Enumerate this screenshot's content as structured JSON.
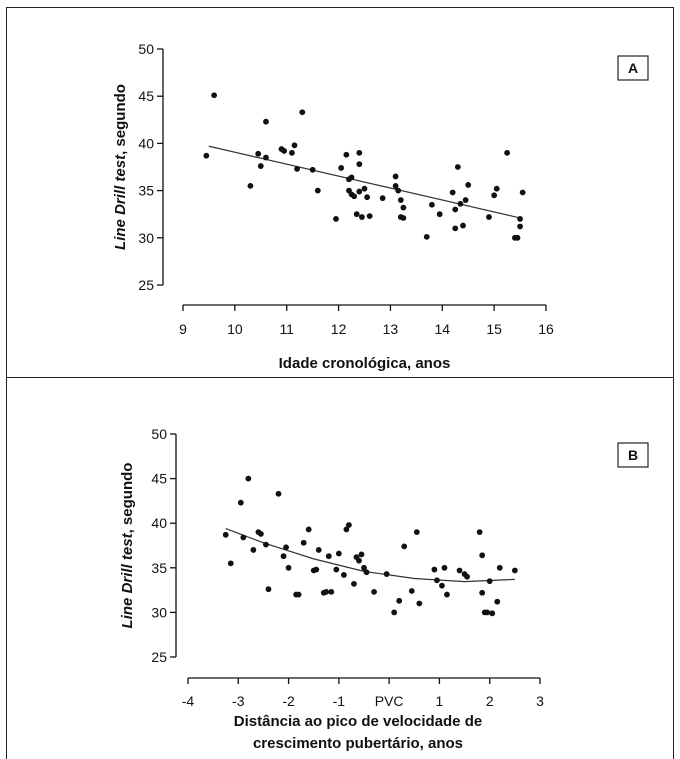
{
  "chart_data": [
    {
      "type": "scatter",
      "panel_label": "A",
      "ylabel_italic": "Line Drill test",
      "ylabel_rest": ", segundo",
      "xlabel_lines": [
        "Idade cronológica, anos"
      ],
      "xlim": [
        9,
        16
      ],
      "ylim": [
        25,
        50
      ],
      "x_ticks": [
        "9",
        "10",
        "11",
        "12",
        "13",
        "14",
        "15",
        "16"
      ],
      "y_ticks": [
        "25",
        "30",
        "35",
        "40",
        "45",
        "50"
      ],
      "fit": {
        "type": "linear",
        "points": [
          [
            9.5,
            39.7
          ],
          [
            15.5,
            32.1
          ]
        ]
      },
      "points": [
        [
          9.45,
          38.7
        ],
        [
          9.6,
          45.1
        ],
        [
          10.3,
          35.5
        ],
        [
          10.45,
          38.9
        ],
        [
          10.5,
          37.6
        ],
        [
          10.6,
          42.3
        ],
        [
          10.6,
          38.5
        ],
        [
          10.9,
          39.4
        ],
        [
          10.95,
          39.2
        ],
        [
          11.1,
          39.0
        ],
        [
          11.15,
          39.8
        ],
        [
          11.2,
          37.3
        ],
        [
          11.3,
          43.3
        ],
        [
          11.5,
          37.2
        ],
        [
          11.6,
          35.0
        ],
        [
          11.95,
          32.0
        ],
        [
          12.05,
          37.4
        ],
        [
          12.15,
          38.8
        ],
        [
          12.2,
          36.2
        ],
        [
          12.2,
          35.0
        ],
        [
          12.25,
          34.6
        ],
        [
          12.25,
          36.4
        ],
        [
          12.3,
          34.4
        ],
        [
          12.35,
          32.5
        ],
        [
          12.4,
          39.0
        ],
        [
          12.4,
          37.8
        ],
        [
          12.4,
          34.9
        ],
        [
          12.45,
          32.2
        ],
        [
          12.5,
          35.2
        ],
        [
          12.55,
          34.3
        ],
        [
          12.6,
          32.3
        ],
        [
          12.85,
          34.2
        ],
        [
          13.1,
          36.5
        ],
        [
          13.1,
          35.5
        ],
        [
          13.15,
          35.0
        ],
        [
          13.2,
          34.0
        ],
        [
          13.2,
          32.2
        ],
        [
          13.25,
          33.2
        ],
        [
          13.25,
          32.1
        ],
        [
          13.7,
          30.1
        ],
        [
          13.8,
          33.5
        ],
        [
          13.95,
          32.5
        ],
        [
          14.2,
          34.8
        ],
        [
          14.25,
          33.0
        ],
        [
          14.25,
          31.0
        ],
        [
          14.3,
          37.5
        ],
        [
          14.35,
          33.6
        ],
        [
          14.4,
          31.3
        ],
        [
          14.45,
          34.0
        ],
        [
          14.5,
          35.6
        ],
        [
          14.9,
          32.2
        ],
        [
          15.0,
          34.5
        ],
        [
          15.05,
          35.2
        ],
        [
          15.25,
          39.0
        ],
        [
          15.4,
          30.0
        ],
        [
          15.45,
          30.0
        ],
        [
          15.5,
          32.0
        ],
        [
          15.5,
          31.2
        ],
        [
          15.55,
          34.8
        ]
      ]
    },
    {
      "type": "scatter",
      "panel_label": "B",
      "ylabel_italic": "Line Drill test",
      "ylabel_rest": ", segundo",
      "xlabel_lines": [
        "Distância ao pico de velocidade de",
        "crescimento pubertário, anos"
      ],
      "xlim": [
        -4,
        3
      ],
      "ylim": [
        25,
        50
      ],
      "x_ticks": [
        "-4",
        "-3",
        "-2",
        "-1",
        "PVC",
        "1",
        "2",
        "3"
      ],
      "y_ticks": [
        "25",
        "30",
        "35",
        "40",
        "45",
        "50"
      ],
      "fit": {
        "type": "quadratic",
        "points": [
          [
            -3.25,
            39.4
          ],
          [
            -2.5,
            37.8
          ],
          [
            -1.5,
            36.0
          ],
          [
            -0.5,
            34.6
          ],
          [
            0.5,
            33.8
          ],
          [
            1.5,
            33.45
          ],
          [
            2.5,
            33.7
          ]
        ]
      },
      "points": [
        [
          -3.25,
          38.7
        ],
        [
          -3.15,
          35.5
        ],
        [
          -2.95,
          42.3
        ],
        [
          -2.9,
          38.4
        ],
        [
          -2.8,
          45.0
        ],
        [
          -2.7,
          37.0
        ],
        [
          -2.6,
          39.0
        ],
        [
          -2.55,
          38.8
        ],
        [
          -2.45,
          37.6
        ],
        [
          -2.4,
          32.6
        ],
        [
          -2.2,
          43.3
        ],
        [
          -2.1,
          36.3
        ],
        [
          -2.05,
          37.3
        ],
        [
          -2.0,
          35.0
        ],
        [
          -1.85,
          32.0
        ],
        [
          -1.8,
          32.0
        ],
        [
          -1.7,
          37.8
        ],
        [
          -1.6,
          39.3
        ],
        [
          -1.5,
          34.7
        ],
        [
          -1.45,
          34.8
        ],
        [
          -1.4,
          37.0
        ],
        [
          -1.3,
          32.2
        ],
        [
          -1.25,
          32.3
        ],
        [
          -1.2,
          36.3
        ],
        [
          -1.15,
          32.3
        ],
        [
          -1.05,
          34.8
        ],
        [
          -1.0,
          36.6
        ],
        [
          -0.9,
          34.2
        ],
        [
          -0.85,
          39.3
        ],
        [
          -0.8,
          39.8
        ],
        [
          -0.7,
          33.2
        ],
        [
          -0.65,
          36.2
        ],
        [
          -0.6,
          35.8
        ],
        [
          -0.55,
          36.5
        ],
        [
          -0.5,
          35.0
        ],
        [
          -0.45,
          34.5
        ],
        [
          -0.3,
          32.3
        ],
        [
          -0.05,
          34.3
        ],
        [
          0.1,
          30.0
        ],
        [
          0.2,
          31.3
        ],
        [
          0.3,
          37.4
        ],
        [
          0.45,
          32.4
        ],
        [
          0.55,
          39.0
        ],
        [
          0.6,
          31.0
        ],
        [
          0.9,
          34.8
        ],
        [
          0.95,
          33.6
        ],
        [
          1.05,
          33.0
        ],
        [
          1.1,
          35.0
        ],
        [
          1.15,
          32.0
        ],
        [
          1.4,
          34.7
        ],
        [
          1.5,
          34.3
        ],
        [
          1.55,
          34.0
        ],
        [
          1.8,
          39.0
        ],
        [
          1.85,
          36.4
        ],
        [
          1.85,
          32.2
        ],
        [
          1.9,
          30.0
        ],
        [
          1.95,
          30.0
        ],
        [
          2.0,
          33.5
        ],
        [
          2.05,
          29.9
        ],
        [
          2.15,
          31.2
        ],
        [
          2.2,
          35.0
        ],
        [
          2.5,
          34.7
        ]
      ]
    }
  ]
}
